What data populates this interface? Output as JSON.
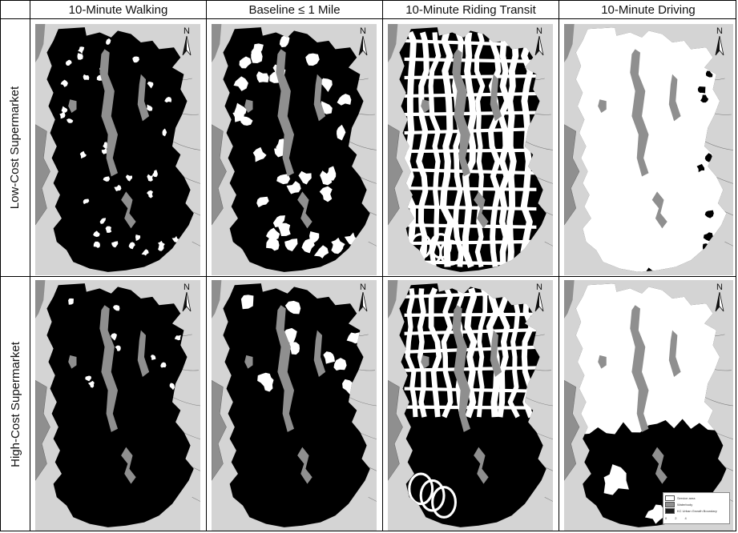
{
  "columns": [
    "10-Minute Walking",
    "Baseline ≤ 1 Mile",
    "10-Minute Riding Transit",
    "10-Minute Driving"
  ],
  "rows": [
    "Low-Cost Supermarket",
    "High-Cost Supermarket"
  ],
  "north_label": "N",
  "legend": {
    "items": [
      "Service area",
      "Waterbody",
      "KC Urban Growth Boundary"
    ],
    "scale": [
      "0",
      "2",
      "4"
    ]
  },
  "colors": {
    "study_area": "#000000",
    "service_area": "#ffffff",
    "background_land": "#d4d4d4",
    "waterbody": "#8f8f8f"
  },
  "icons": [
    "north-arrow-icon"
  ]
}
